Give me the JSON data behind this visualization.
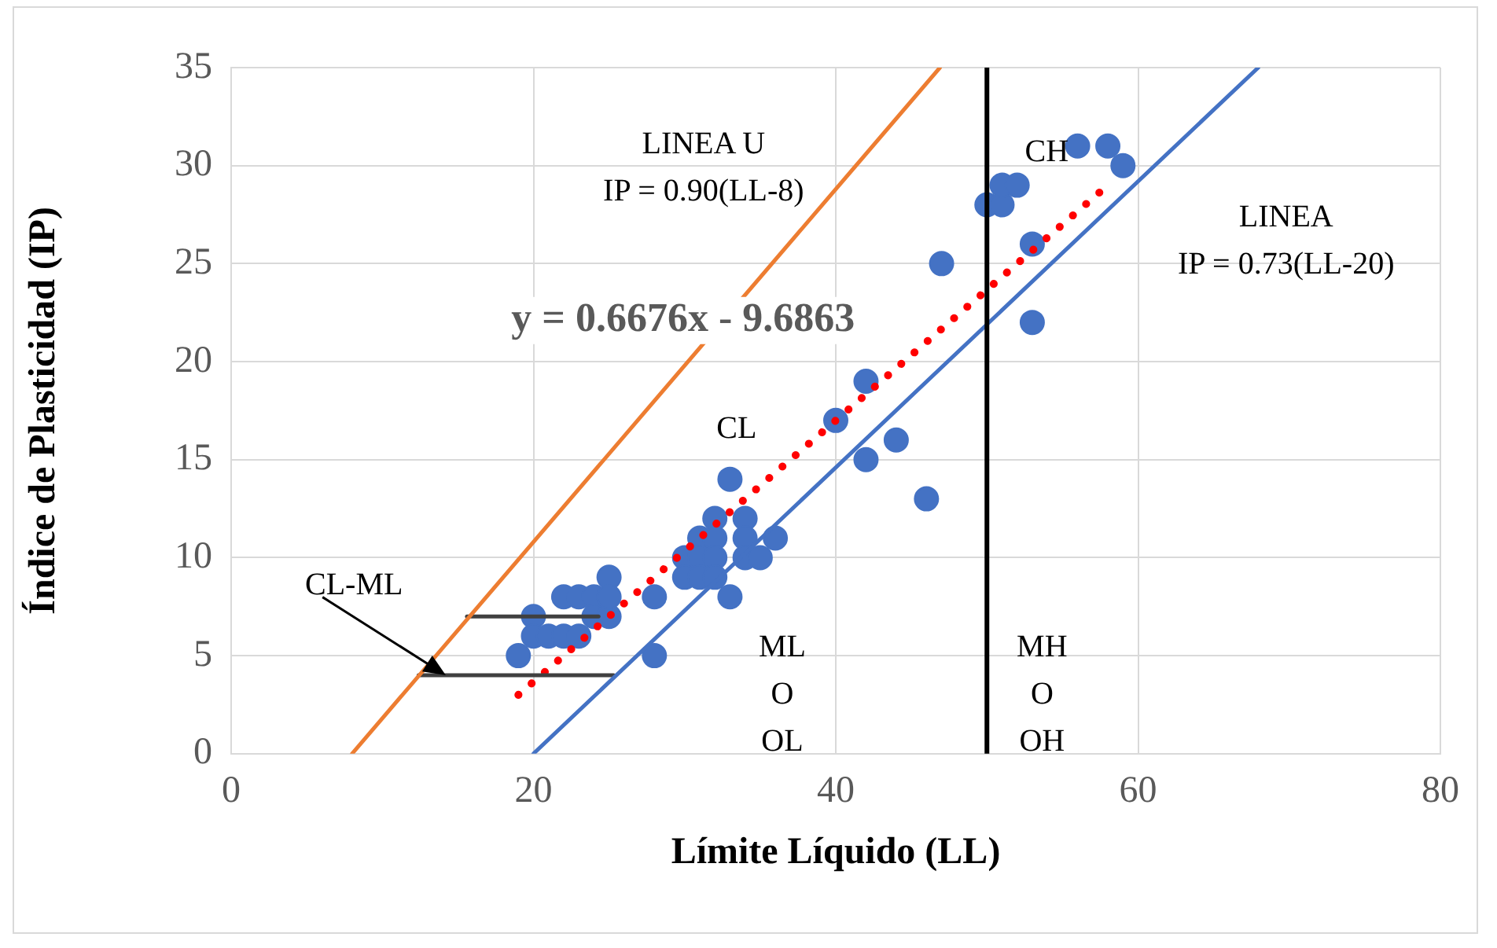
{
  "chart_data": {
    "type": "scatter",
    "xlabel": "Límite Líquido (LL)",
    "ylabel": "Índice de Plasticidad (IP)",
    "xlim": [
      0,
      80
    ],
    "xticks": [
      0,
      20,
      40,
      60,
      80
    ],
    "ylim": [
      0,
      35
    ],
    "yticks": [
      0,
      5,
      10,
      15,
      20,
      25,
      30,
      35
    ],
    "grid": true,
    "legend": false,
    "marker": "circle",
    "series": [
      {
        "type": "line",
        "color": "#ed7d31",
        "x": [
          8,
          46.89
        ],
        "values": [
          0,
          35
        ],
        "marker": "none"
      },
      {
        "type": "line",
        "color": "#4472c4",
        "x": [
          20,
          67.95
        ],
        "values": [
          0,
          35
        ],
        "marker": "none"
      },
      {
        "type": "line",
        "color": "#404040",
        "x": [
          15.6,
          24.3
        ],
        "values": [
          7,
          7
        ],
        "marker": "none"
      },
      {
        "type": "line",
        "color": "#404040",
        "x": [
          12.4,
          25.3
        ],
        "values": [
          4,
          4
        ],
        "marker": "none"
      },
      {
        "type": "line",
        "color": "#ff0000",
        "x": [
          19,
          58
        ],
        "values": [
          3.0,
          29.0
        ],
        "marker": "none",
        "line_style": "dotted"
      },
      {
        "color": "#4472c4",
        "x": [
          19,
          20,
          20,
          21,
          22,
          23,
          22,
          23,
          24,
          24,
          25,
          25,
          25,
          28,
          28,
          30,
          30,
          31,
          31,
          31,
          32,
          32,
          32,
          32,
          33,
          33,
          34,
          34,
          34,
          35,
          36,
          40,
          42,
          42,
          44,
          46,
          47,
          50,
          51,
          51,
          52,
          53,
          53,
          56,
          58,
          59
        ],
        "values": [
          5,
          7,
          6,
          6,
          6,
          6,
          8,
          8,
          8,
          7,
          7,
          9,
          8,
          8,
          5,
          10,
          9,
          11,
          10,
          9,
          12,
          11,
          10,
          9,
          14,
          8,
          12,
          11,
          10,
          10,
          11,
          17,
          19,
          15,
          16,
          13,
          25,
          28,
          28,
          29,
          29,
          26,
          22,
          31,
          31,
          30
        ]
      }
    ],
    "ref_lines": [
      {
        "axis": "x",
        "value": 50,
        "color": "#000000"
      }
    ],
    "annotations": [
      "y = 0.6676x - 9.6863",
      "LINEA U\nIP = 0.90(LL-8)",
      "CH",
      "CL",
      {
        "text": "CL-ML",
        "x": 14.2,
        "y": 4
      },
      "ML\nO\nOL",
      "MH\nO\nOH",
      "LINEA\nIP = 0.73(LL-20)"
    ]
  }
}
